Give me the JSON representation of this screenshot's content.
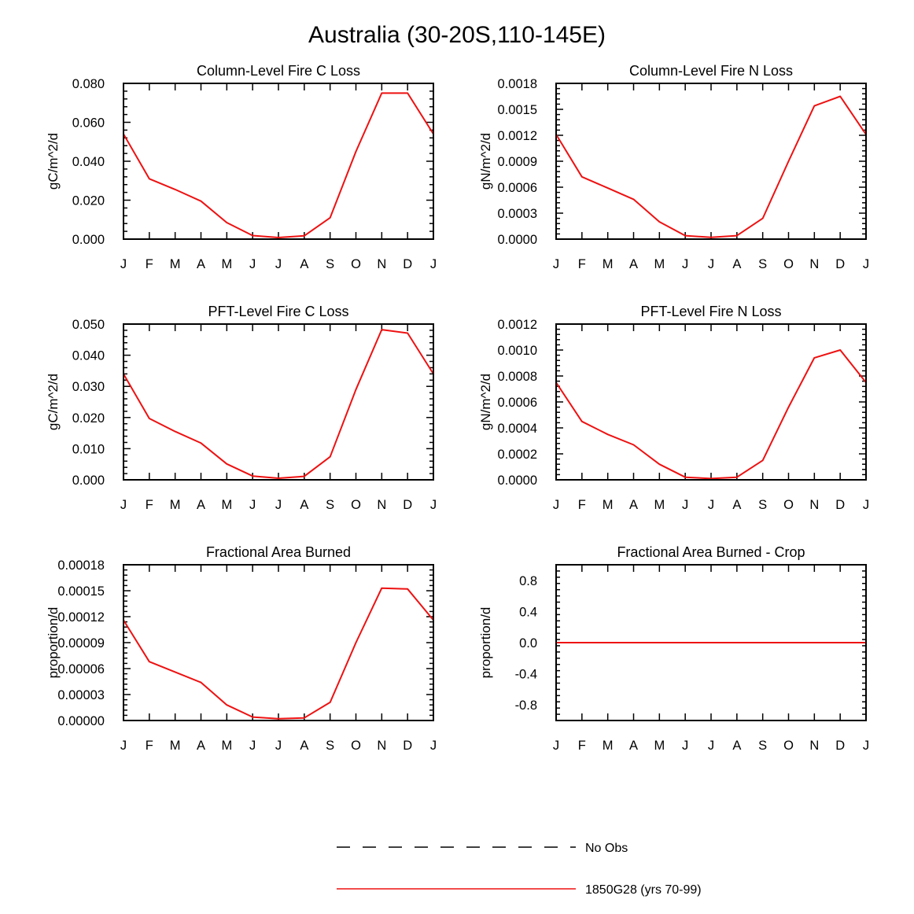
{
  "figure_title": "Australia (30-20S,110-145E)",
  "colors": {
    "model": "#ee1111",
    "obs": "#000000",
    "frame": "#000000"
  },
  "legend": [
    {
      "label": "No Obs",
      "style": "dashed",
      "color": "#000000"
    },
    {
      "label": "1850G28 (yrs 70-99)",
      "style": "solid",
      "color": "#ee1111"
    }
  ],
  "chart_data": [
    {
      "type": "line",
      "title": "Column-Level Fire C Loss",
      "ylabel": "gC/m^2/d",
      "categories": [
        "J",
        "F",
        "M",
        "A",
        "M",
        "J",
        "J",
        "A",
        "S",
        "O",
        "N",
        "D",
        "J"
      ],
      "ylim": [
        0,
        0.08
      ],
      "yticks": [
        "0.000",
        "0.020",
        "0.040",
        "0.060",
        "0.080"
      ],
      "series": [
        {
          "values": [
            0.054,
            0.031,
            0.0255,
            0.0195,
            0.0085,
            0.0018,
            0.0008,
            0.0017,
            0.011,
            0.045,
            0.075,
            0.075,
            0.054
          ]
        }
      ]
    },
    {
      "type": "line",
      "title": "Column-Level Fire N Loss",
      "ylabel": "gN/m^2/d",
      "categories": [
        "J",
        "F",
        "M",
        "A",
        "M",
        "J",
        "J",
        "A",
        "S",
        "O",
        "N",
        "D",
        "J"
      ],
      "ylim": [
        0,
        0.0018
      ],
      "yticks": [
        "0.0000",
        "0.0003",
        "0.0006",
        "0.0009",
        "0.0012",
        "0.0015",
        "0.0018"
      ],
      "series": [
        {
          "values": [
            0.00121,
            0.00072,
            0.00059,
            0.00046,
            0.0002,
            4e-05,
            2e-05,
            4e-05,
            0.00024,
            0.0009,
            0.00154,
            0.00165,
            0.00121
          ]
        }
      ]
    },
    {
      "type": "line",
      "title": "PFT-Level Fire C Loss",
      "ylabel": "gC/m^2/d",
      "categories": [
        "J",
        "F",
        "M",
        "A",
        "M",
        "J",
        "J",
        "A",
        "S",
        "O",
        "N",
        "D",
        "J"
      ],
      "ylim": [
        0,
        0.05
      ],
      "yticks": [
        "0.000",
        "0.010",
        "0.020",
        "0.030",
        "0.040",
        "0.050"
      ],
      "series": [
        {
          "values": [
            0.034,
            0.0197,
            0.0155,
            0.0118,
            0.0051,
            0.0012,
            0.0005,
            0.0011,
            0.0074,
            0.029,
            0.0482,
            0.0471,
            0.034
          ]
        }
      ]
    },
    {
      "type": "line",
      "title": "PFT-Level Fire N Loss",
      "ylabel": "gN/m^2/d",
      "categories": [
        "J",
        "F",
        "M",
        "A",
        "M",
        "J",
        "J",
        "A",
        "S",
        "O",
        "N",
        "D",
        "J"
      ],
      "ylim": [
        0,
        0.0012
      ],
      "yticks": [
        "0.0000",
        "0.0002",
        "0.0004",
        "0.0006",
        "0.0008",
        "0.0010",
        "0.0012"
      ],
      "series": [
        {
          "values": [
            0.00075,
            0.00045,
            0.00035,
            0.00027,
            0.00012,
            2e-05,
            1e-05,
            2e-05,
            0.00015,
            0.00056,
            0.00094,
            0.001,
            0.00075
          ]
        }
      ]
    },
    {
      "type": "line",
      "title": "Fractional Area Burned",
      "ylabel": "proportion/d",
      "categories": [
        "J",
        "F",
        "M",
        "A",
        "M",
        "J",
        "J",
        "A",
        "S",
        "O",
        "N",
        "D",
        "J"
      ],
      "ylim": [
        0,
        0.00018
      ],
      "yticks": [
        "0.00000",
        "0.00003",
        "0.00006",
        "0.00009",
        "0.00012",
        "0.00015",
        "0.00018"
      ],
      "series": [
        {
          "values": [
            0.000116,
            6.8e-05,
            5.6e-05,
            4.4e-05,
            1.8e-05,
            4e-06,
            2e-06,
            3e-06,
            2.1e-05,
            9e-05,
            0.000153,
            0.000152,
            0.000116
          ]
        }
      ]
    },
    {
      "type": "line",
      "title": "Fractional Area Burned - Crop",
      "ylabel": "proportion/d",
      "categories": [
        "J",
        "F",
        "M",
        "A",
        "M",
        "J",
        "J",
        "A",
        "S",
        "O",
        "N",
        "D",
        "J"
      ],
      "ylim": [
        -1,
        1
      ],
      "yticks": [
        "-0.8",
        "-0.4",
        "0.0",
        "0.4",
        "0.8"
      ],
      "ytick_values": [
        -0.8,
        -0.4,
        0,
        0.4,
        0.8
      ],
      "series": [
        {
          "values": [
            0,
            0,
            0,
            0,
            0,
            0,
            0,
            0,
            0,
            0,
            0,
            0,
            0
          ]
        }
      ]
    }
  ]
}
